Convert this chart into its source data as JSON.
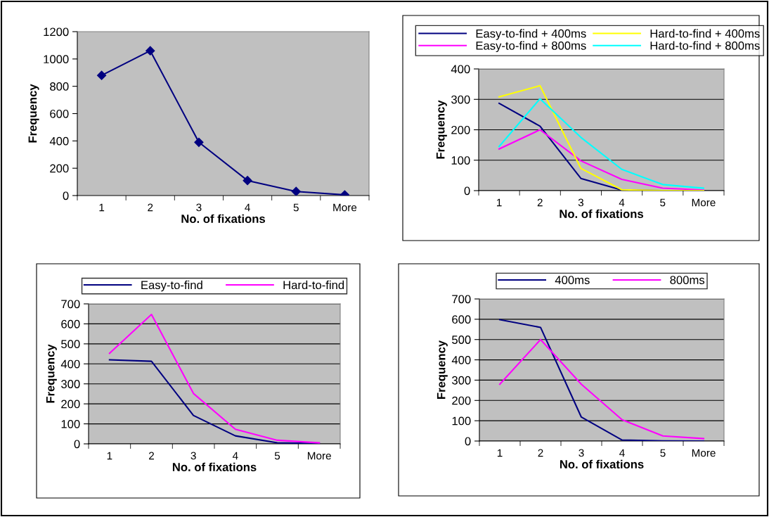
{
  "chart_data": [
    {
      "type": "line",
      "categories": [
        "1",
        "2",
        "3",
        "4",
        "5",
        "More"
      ],
      "xlabel": "No. of fixations",
      "ylabel": "Frequency",
      "ylim": [
        0,
        1200
      ],
      "yticks": [
        0,
        200,
        400,
        600,
        800,
        1000,
        1200
      ],
      "grid": false,
      "marker": "diamond",
      "legend": false,
      "series": [
        {
          "color": "#000080",
          "values": [
            880,
            1060,
            390,
            110,
            30,
            5
          ]
        }
      ]
    },
    {
      "type": "line",
      "categories": [
        "1",
        "2",
        "3",
        "4",
        "5",
        "More"
      ],
      "xlabel": "No. of fixations",
      "ylabel": "Frequency",
      "ylim": [
        0,
        400
      ],
      "yticks": [
        0,
        100,
        200,
        300,
        400
      ],
      "grid": "y",
      "legend": "top",
      "series": [
        {
          "name": "Easy-to-find + 400ms",
          "color": "#000080",
          "values": [
            287,
            212,
            40,
            2,
            0,
            0
          ]
        },
        {
          "name": "Easy-to-find + 800ms",
          "color": "#ff00ff",
          "values": [
            137,
            200,
            98,
            37,
            8,
            2
          ]
        },
        {
          "name": "Hard-to-find + 400ms",
          "color": "#ffff00",
          "values": [
            308,
            345,
            73,
            3,
            0,
            0
          ]
        },
        {
          "name": "Hard-to-find + 800ms",
          "color": "#00ffff",
          "values": [
            145,
            302,
            175,
            70,
            20,
            8
          ]
        }
      ]
    },
    {
      "type": "line",
      "categories": [
        "1",
        "2",
        "3",
        "4",
        "5",
        "More"
      ],
      "xlabel": "No. of fixations",
      "ylabel": "Frequency",
      "ylim": [
        0,
        700
      ],
      "yticks": [
        0,
        100,
        200,
        300,
        400,
        500,
        600,
        700
      ],
      "grid": "y",
      "legend": "top",
      "series": [
        {
          "name": "Easy-to-find",
          "color": "#000080",
          "values": [
            420,
            413,
            142,
            40,
            5,
            2
          ]
        },
        {
          "name": "Hard-to-find",
          "color": "#ff00ff",
          "values": [
            453,
            647,
            252,
            73,
            18,
            5
          ]
        }
      ]
    },
    {
      "type": "line",
      "categories": [
        "1",
        "2",
        "3",
        "4",
        "5",
        "More"
      ],
      "xlabel": "No. of fixations",
      "ylabel": "Frequency",
      "ylim": [
        0,
        700
      ],
      "yticks": [
        0,
        100,
        200,
        300,
        400,
        500,
        600,
        700
      ],
      "grid": "y",
      "legend": "top",
      "series": [
        {
          "name": "400ms",
          "color": "#000080",
          "values": [
            598,
            560,
            118,
            5,
            1,
            0
          ]
        },
        {
          "name": "800ms",
          "color": "#ff00ff",
          "values": [
            280,
            500,
            280,
            105,
            25,
            12
          ]
        }
      ]
    }
  ]
}
